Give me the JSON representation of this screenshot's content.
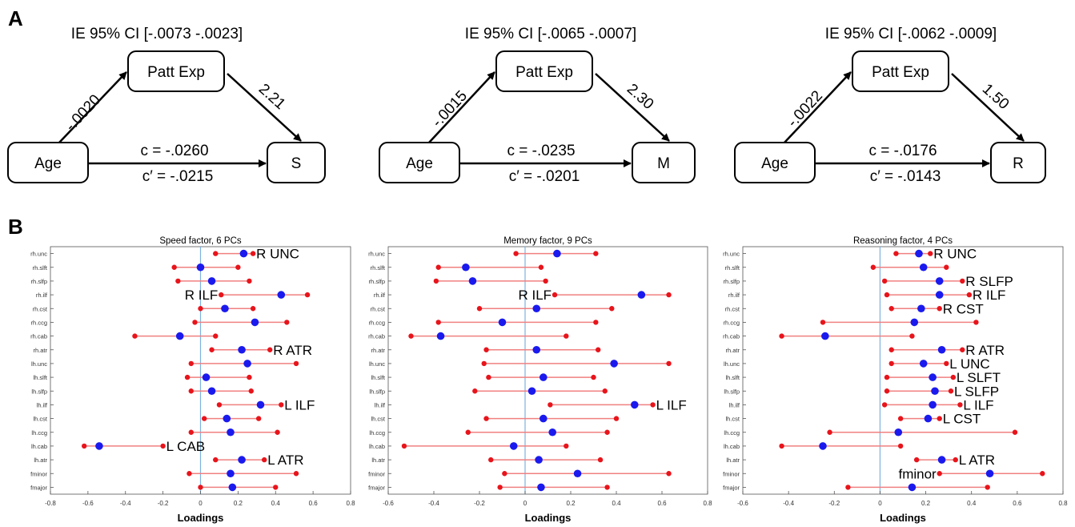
{
  "panel_labels": {
    "a": "A",
    "b": "B"
  },
  "mediation": [
    {
      "ci": "IE 95% CI [-.0073   -.0023]",
      "mediator": "Patt Exp",
      "predictor": "Age",
      "outcome": "S",
      "a_path": "-.0020",
      "b_path": "2.21",
      "c": "c = -.0260",
      "c_prime": "c′ = -.0215"
    },
    {
      "ci": "IE 95% CI [-.0065   -.0007]",
      "mediator": "Patt Exp",
      "predictor": "Age",
      "outcome": "M",
      "a_path": "-.0015",
      "b_path": "2.30",
      "c": "c = -.0235",
      "c_prime": "c′ = -.0201"
    },
    {
      "ci": "IE 95% CI [-.0062   -.0009]",
      "mediator": "Patt Exp",
      "predictor": "Age",
      "outcome": "R",
      "a_path": "-.0022",
      "b_path": "1.50",
      "c": "c = -.0176",
      "c_prime": "c′ = -.0143"
    }
  ],
  "colors": {
    "line": "#f08080",
    "dot_red": "#e8141b",
    "dot_blue": "#1a1aee",
    "zero_line": "#7fb2e0",
    "axis": "#555555"
  },
  "chart_data": [
    {
      "type": "scatter",
      "title": "Speed factor, 6 PCs",
      "xlabel": "Loadings",
      "xlim": [
        -0.8,
        0.8
      ],
      "xticks": [
        "-0.8",
        "-0.6",
        "-0.4",
        "-0.2",
        "0",
        "0.2",
        "0.4",
        "0.6",
        "0.8"
      ],
      "categories": [
        "rh.unc",
        "rh.slft",
        "rh.slfp",
        "rh.ilf",
        "rh.cst",
        "rh.ccg",
        "rh.cab",
        "rh.atr",
        "lh.unc",
        "lh.slft",
        "lh.slfp",
        "lh.ilf",
        "lh.cst",
        "lh.ccg",
        "lh.cab",
        "lh.atr",
        "fminor",
        "fmajor"
      ],
      "series": [
        {
          "name": "",
          "low": [
            0.08,
            -0.14,
            -0.12,
            0.11,
            0.0,
            -0.03,
            -0.35,
            0.06,
            -0.05,
            -0.07,
            -0.05,
            0.1,
            0.02,
            -0.05,
            -0.62,
            0.08,
            -0.06,
            0.0
          ],
          "estimate": [
            0.23,
            0.0,
            0.06,
            0.43,
            0.13,
            0.29,
            -0.11,
            0.22,
            0.25,
            0.03,
            0.06,
            0.32,
            0.14,
            0.16,
            -0.54,
            0.22,
            0.16,
            0.17
          ],
          "high": [
            0.28,
            0.2,
            0.26,
            0.57,
            0.28,
            0.46,
            0.08,
            0.37,
            0.51,
            0.26,
            0.27,
            0.43,
            0.31,
            0.41,
            -0.2,
            0.34,
            0.51,
            0.4
          ]
        }
      ],
      "annotations": [
        {
          "category": "rh.unc",
          "text": "R UNC"
        },
        {
          "category": "rh.ilf",
          "text": "R ILF"
        },
        {
          "category": "rh.atr",
          "text": "R ATR"
        },
        {
          "category": "lh.ilf",
          "text": "L ILF"
        },
        {
          "category": "lh.cab",
          "text": "L CAB"
        },
        {
          "category": "lh.atr",
          "text": "L ATR"
        }
      ]
    },
    {
      "type": "scatter",
      "title": "Memory factor, 9 PCs",
      "xlabel": "Loadings",
      "xlim": [
        -0.6,
        0.8
      ],
      "xticks": [
        "-0.6",
        "-0.4",
        "-0.2",
        "0",
        "0.2",
        "0.4",
        "0.6",
        "0.8"
      ],
      "categories": [
        "rh.unc",
        "rh.slft",
        "rh.slfp",
        "rh.ilf",
        "rh.cst",
        "rh.ccg",
        "rh.cab",
        "rh.atr",
        "lh.unc",
        "lh.slft",
        "lh.slfp",
        "lh.ilf",
        "lh.cst",
        "lh.ccg",
        "lh.cab",
        "lh.atr",
        "fminor",
        "fmajor"
      ],
      "series": [
        {
          "name": "",
          "low": [
            -0.04,
            -0.38,
            -0.39,
            0.13,
            -0.2,
            -0.38,
            -0.5,
            -0.17,
            -0.18,
            -0.16,
            -0.22,
            0.11,
            -0.17,
            -0.25,
            -0.53,
            -0.15,
            -0.09,
            -0.11
          ],
          "estimate": [
            0.14,
            -0.26,
            -0.23,
            0.51,
            0.05,
            -0.1,
            -0.37,
            0.05,
            0.39,
            0.08,
            0.03,
            0.48,
            0.08,
            0.12,
            -0.05,
            0.06,
            0.23,
            0.07
          ],
          "high": [
            0.31,
            0.07,
            0.09,
            0.63,
            0.38,
            0.31,
            0.18,
            0.32,
            0.63,
            0.3,
            0.35,
            0.56,
            0.4,
            0.36,
            0.18,
            0.33,
            0.63,
            0.36
          ]
        }
      ],
      "annotations": [
        {
          "category": "rh.ilf",
          "text": "R ILF"
        },
        {
          "category": "lh.ilf",
          "text": "L ILF"
        }
      ]
    },
    {
      "type": "scatter",
      "title": "Reasoning factor, 4 PCs",
      "xlabel": "Loadings",
      "xlim": [
        -0.6,
        0.8
      ],
      "xticks": [
        "-0.6",
        "-0.4",
        "-0.2",
        "0",
        "0.2",
        "0.4",
        "0.6",
        "0.8"
      ],
      "categories": [
        "rh.unc",
        "rh.slft",
        "rh.slfp",
        "rh.ilf",
        "rh.cst",
        "rh.ccg",
        "rh.cab",
        "rh.atr",
        "lh.unc",
        "lh.slft",
        "lh.slfp",
        "lh.ilf",
        "lh.cst",
        "lh.ccg",
        "lh.cab",
        "lh.atr",
        "fminor",
        "fmajor"
      ],
      "series": [
        {
          "name": "",
          "low": [
            0.07,
            -0.03,
            0.02,
            0.03,
            0.05,
            -0.25,
            -0.43,
            0.05,
            0.05,
            0.03,
            0.03,
            0.02,
            0.09,
            -0.22,
            -0.43,
            0.16,
            0.26,
            -0.14
          ],
          "estimate": [
            0.17,
            0.19,
            0.26,
            0.26,
            0.18,
            0.15,
            -0.24,
            0.27,
            0.19,
            0.23,
            0.24,
            0.23,
            0.21,
            0.08,
            -0.25,
            0.27,
            0.48,
            0.14
          ],
          "high": [
            0.22,
            0.29,
            0.36,
            0.39,
            0.26,
            0.42,
            0.14,
            0.36,
            0.29,
            0.32,
            0.31,
            0.35,
            0.26,
            0.59,
            0.09,
            0.33,
            0.71,
            0.47
          ]
        }
      ],
      "annotations": [
        {
          "category": "rh.unc",
          "text": "R UNC"
        },
        {
          "category": "rh.slfp",
          "text": "R SLFP"
        },
        {
          "category": "rh.ilf",
          "text": "R ILF"
        },
        {
          "category": "rh.cst",
          "text": "R CST"
        },
        {
          "category": "rh.atr",
          "text": "R ATR"
        },
        {
          "category": "lh.unc",
          "text": "L UNC"
        },
        {
          "category": "lh.slft",
          "text": "L SLFT"
        },
        {
          "category": "lh.slfp",
          "text": "L SLFP"
        },
        {
          "category": "lh.ilf",
          "text": "L ILF"
        },
        {
          "category": "lh.cst",
          "text": "L CST"
        },
        {
          "category": "lh.atr",
          "text": "L ATR"
        },
        {
          "category": "fminor",
          "text": "fminor"
        }
      ]
    }
  ]
}
